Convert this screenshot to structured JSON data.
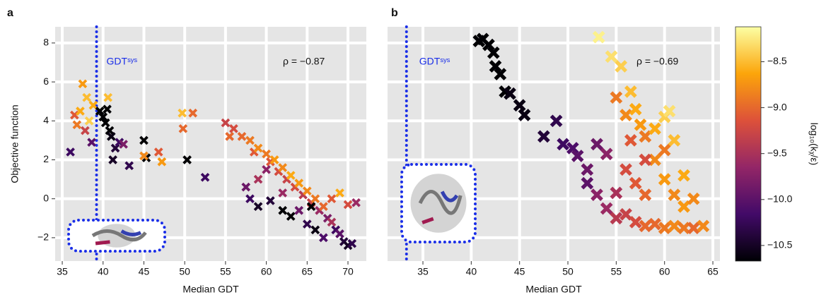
{
  "chart_data": [
    {
      "type": "scatter",
      "title": "a",
      "xlabel": "Median GDT",
      "ylabel": "Objective function",
      "xlim": [
        34.13,
        72.25
      ],
      "ylim": [
        -3.2,
        8.83
      ],
      "xticks": [
        35,
        40,
        45,
        50,
        55,
        60,
        65,
        70
      ],
      "yticks": [
        -2,
        0,
        2,
        4,
        6,
        8
      ],
      "yticks_y": [
        {
          "value": -2,
          "label": "−2"
        },
        0,
        2,
        4,
        6,
        8
      ],
      "grid": true,
      "annotation": "ρ = −0.87",
      "sys_label": "GDTˢʸˢ",
      "sys_line_x": 39.2,
      "x": [
        36.5,
        36.8,
        37.2,
        37.5,
        38.0,
        38.3,
        37.8,
        38.8,
        36.0,
        38.6,
        39.6,
        40.0,
        40.3,
        40.5,
        40.8,
        41.0,
        41.5,
        41.2,
        42.0,
        42.5,
        43.2,
        40.6,
        45.0,
        45.3,
        45.0,
        46.8,
        47.2,
        49.7,
        49.8,
        51.0,
        50.3,
        52.5,
        55.0,
        55.5,
        56,
        57,
        58,
        58.5,
        59,
        60,
        60.5,
        61,
        61.5,
        62,
        62.5,
        63,
        63.5,
        64,
        64.5,
        65,
        65.5,
        66,
        66.5,
        67,
        67.5,
        68,
        68.5,
        69,
        69.5,
        70,
        70.5,
        68,
        69,
        70,
        71,
        57.5,
        58,
        59,
        60.5,
        62,
        63,
        64,
        65,
        66,
        67,
        65.5,
        60,
        62,
        59
      ],
      "y": [
        4.3,
        3.8,
        4.5,
        5.9,
        5.2,
        4.0,
        3.5,
        4.8,
        2.4,
        2.9,
        4.5,
        4.2,
        3.9,
        4.6,
        3.5,
        3.2,
        2.6,
        2.0,
        2.9,
        2.8,
        1.7,
        5.2,
        3.0,
        2.1,
        2.2,
        2.4,
        1.9,
        4.4,
        3.6,
        4.4,
        2.0,
        1.1,
        3.9,
        3.2,
        3.6,
        3.2,
        3.0,
        2.4,
        2.6,
        2.3,
        1.9,
        2.0,
        1.4,
        1.6,
        1.0,
        1.2,
        0.6,
        0.8,
        0.2,
        0.4,
        -0.2,
        0.0,
        -0.6,
        -0.4,
        -1.0,
        -1.2,
        -1.6,
        -1.8,
        -2.2,
        -2.4,
        -2.3,
        0.0,
        0.3,
        -0.3,
        -0.2,
        0.6,
        0.0,
        -0.4,
        -0.1,
        -0.6,
        -0.9,
        -0.6,
        -1.3,
        -1.6,
        -2.0,
        -0.4,
        1.5,
        0.3,
        1.0
      ],
      "c": [
        -9.1,
        -8.9,
        -8.6,
        -8.7,
        -8.5,
        -8.4,
        -9.3,
        -8.6,
        -10.2,
        -10.0,
        -10.9,
        -10.9,
        -10.8,
        -10.9,
        -10.7,
        -10.6,
        -10.4,
        -10.5,
        -10.2,
        -9.8,
        -10.3,
        -8.5,
        -10.9,
        -10.7,
        -8.8,
        -9.1,
        -8.7,
        -8.5,
        -9.0,
        -9.0,
        -10.9,
        -10.2,
        -9.3,
        -9.0,
        -9.2,
        -9.0,
        -8.9,
        -9.1,
        -8.8,
        -8.9,
        -9.1,
        -8.7,
        -9.2,
        -8.8,
        -9.3,
        -8.6,
        -9.2,
        -8.7,
        -9.4,
        -8.8,
        -9.3,
        -8.9,
        -9.6,
        -9.0,
        -9.8,
        -9.5,
        -10.2,
        -10.0,
        -10.4,
        -10.5,
        -10.3,
        -9.1,
        -8.6,
        -9.2,
        -9.6,
        -9.9,
        -10.2,
        -10.5,
        -10.4,
        -10.9,
        -10.7,
        -9.9,
        -10.3,
        -10.6,
        -10.1,
        -10.9,
        -9.7,
        -9.6,
        -9.5
      ]
    },
    {
      "type": "scatter",
      "title": "b",
      "xlabel": "Median GDT",
      "xlim": [
        31.34,
        65.73
      ],
      "ylim": [
        -3.2,
        8.83
      ],
      "xticks": [
        35,
        40,
        45,
        50,
        55,
        60,
        65
      ],
      "yticks": [
        -2,
        0,
        2,
        4,
        6,
        8
      ],
      "grid": true,
      "annotation": "ρ = −0.69",
      "sys_label": "GDTˢʸˢ",
      "sys_line_x": 33.3,
      "x": [
        40.8,
        41.2,
        41.8,
        42.3,
        42.5,
        43.0,
        43.5,
        44.0,
        45.0,
        45.5,
        47.5,
        48.8,
        49.5,
        50.5,
        51,
        52,
        52,
        53,
        53,
        54,
        55,
        54,
        55,
        56,
        57,
        58,
        59,
        60,
        61,
        62,
        63,
        64,
        56,
        57,
        58,
        59,
        60,
        61,
        62,
        56.5,
        58,
        59,
        60,
        60.5,
        61,
        62,
        55,
        56,
        56.5,
        57,
        57.5,
        55.5,
        54.5,
        53.2,
        63,
        58,
        60
      ],
      "y": [
        8.1,
        8.2,
        7.9,
        7.5,
        6.8,
        6.4,
        5.5,
        5.4,
        4.8,
        4.3,
        3.2,
        4.0,
        2.8,
        2.6,
        2.2,
        1.5,
        0.8,
        0.2,
        2.8,
        2.3,
        0.3,
        -0.5,
        -1.0,
        -0.8,
        -1.2,
        -1.4,
        -1.3,
        -1.5,
        -1.4,
        -1.5,
        -1.5,
        -1.4,
        1.5,
        0.8,
        0.2,
        2.0,
        1.0,
        0.2,
        -0.4,
        3.0,
        3.2,
        3.6,
        4.2,
        4.5,
        3.0,
        1.2,
        5.2,
        4.3,
        5.5,
        4.6,
        3.8,
        6.8,
        7.3,
        8.3,
        0.0,
        2.0,
        2.5
      ],
      "c": [
        -10.9,
        -10.9,
        -10.9,
        -10.8,
        -10.8,
        -10.7,
        -10.7,
        -10.6,
        -10.6,
        -10.6,
        -10.4,
        -10.3,
        -10.2,
        -10.1,
        -10.0,
        -9.9,
        -10.0,
        -9.7,
        -9.9,
        -9.7,
        -9.5,
        -9.6,
        -9.4,
        -9.3,
        -9.2,
        -9.0,
        -9.0,
        -8.9,
        -8.8,
        -8.9,
        -9.0,
        -8.8,
        -9.2,
        -9.1,
        -9.0,
        -8.8,
        -8.7,
        -8.8,
        -8.7,
        -9.1,
        -8.9,
        -8.6,
        -8.4,
        -8.3,
        -8.5,
        -8.6,
        -8.9,
        -8.8,
        -8.5,
        -8.6,
        -8.7,
        -8.4,
        -8.3,
        -8.2,
        -8.8,
        -9.2,
        -8.9
      ]
    },
    {
      "type": "colorbar",
      "label": "log₁₀(kᵪ/ε)",
      "clim": [
        -10.67,
        -8.12
      ],
      "colormap": [
        "#000004",
        "#420a68",
        "#932667",
        "#dd513a",
        "#fca50a",
        "#fcffa4"
      ],
      "ticks": [
        {
          "value": -8.5,
          "label": "−8.5"
        },
        {
          "value": -9.0,
          "label": "−9.0"
        },
        {
          "value": -9.5,
          "label": "−9.5"
        },
        {
          "value": -10.0,
          "label": "−10.0"
        },
        {
          "value": -10.5,
          "label": "−10.5"
        }
      ]
    }
  ]
}
